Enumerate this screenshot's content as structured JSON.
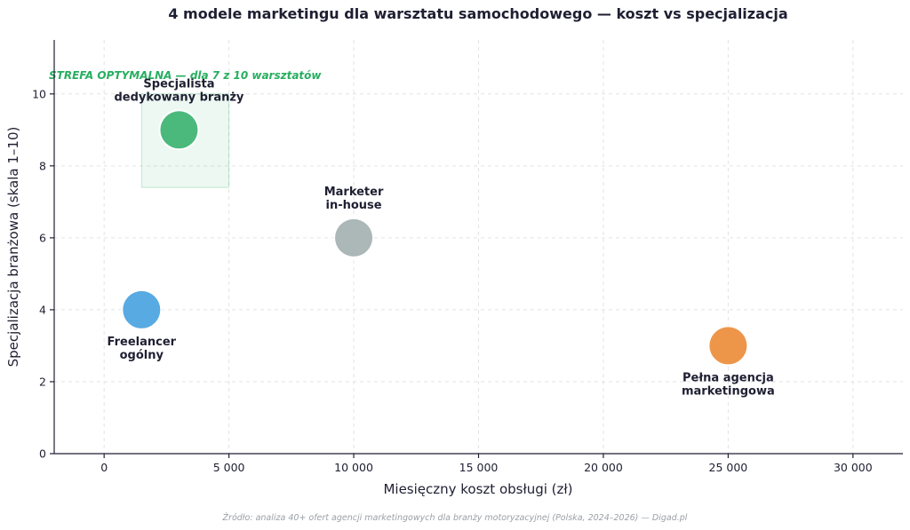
{
  "chart_data": {
    "type": "scatter",
    "title": "4 modele marketingu dla warsztatu samochodowego — koszt vs specjalizacja",
    "xlabel": "Miesięczny koszt obsługi (zł)",
    "ylabel": "Specjalizacja branżowa (skala 1–10)",
    "xlim": [
      -2000,
      32000
    ],
    "ylim": [
      0,
      11.5
    ],
    "x_ticks": [
      0,
      5000,
      10000,
      15000,
      20000,
      25000,
      30000
    ],
    "x_tick_labels": [
      "0",
      "5 000",
      "10 000",
      "15 000",
      "20 000",
      "25 000",
      "30 000"
    ],
    "y_ticks": [
      0,
      2,
      4,
      6,
      8,
      10
    ],
    "y_tick_labels": [
      "0",
      "2",
      "4",
      "6",
      "8",
      "10"
    ],
    "grid": true,
    "points": [
      {
        "label_lines": [
          "Specjalista",
          "dedykowany branży"
        ],
        "x": 3000,
        "y": 9,
        "color": "#3cb371",
        "label_pos": "above"
      },
      {
        "label_lines": [
          "Marketer",
          "in-house"
        ],
        "x": 10000,
        "y": 6,
        "color": "#a5b1b2",
        "label_pos": "above"
      },
      {
        "label_lines": [
          "Freelancer",
          "ogólny"
        ],
        "x": 1500,
        "y": 4,
        "color": "#4aa3df",
        "label_pos": "below"
      },
      {
        "label_lines": [
          "Pełna agencja",
          "marketingowa"
        ],
        "x": 25000,
        "y": 3,
        "color": "#eb8d3b",
        "label_pos": "below"
      }
    ],
    "highlight_zone": {
      "label": "STREFA OPTYMALNA — dla 7 z 10 warsztatów",
      "x_range": [
        1500,
        5000
      ],
      "y_range": [
        7.4,
        10
      ],
      "color": "#27ae60"
    }
  },
  "footer": {
    "source": "Źródło: analiza 40+ ofert agencji marketingowych dla branży motoryzacyjnej (Polska, 2024–2026) — Digad.pl"
  }
}
